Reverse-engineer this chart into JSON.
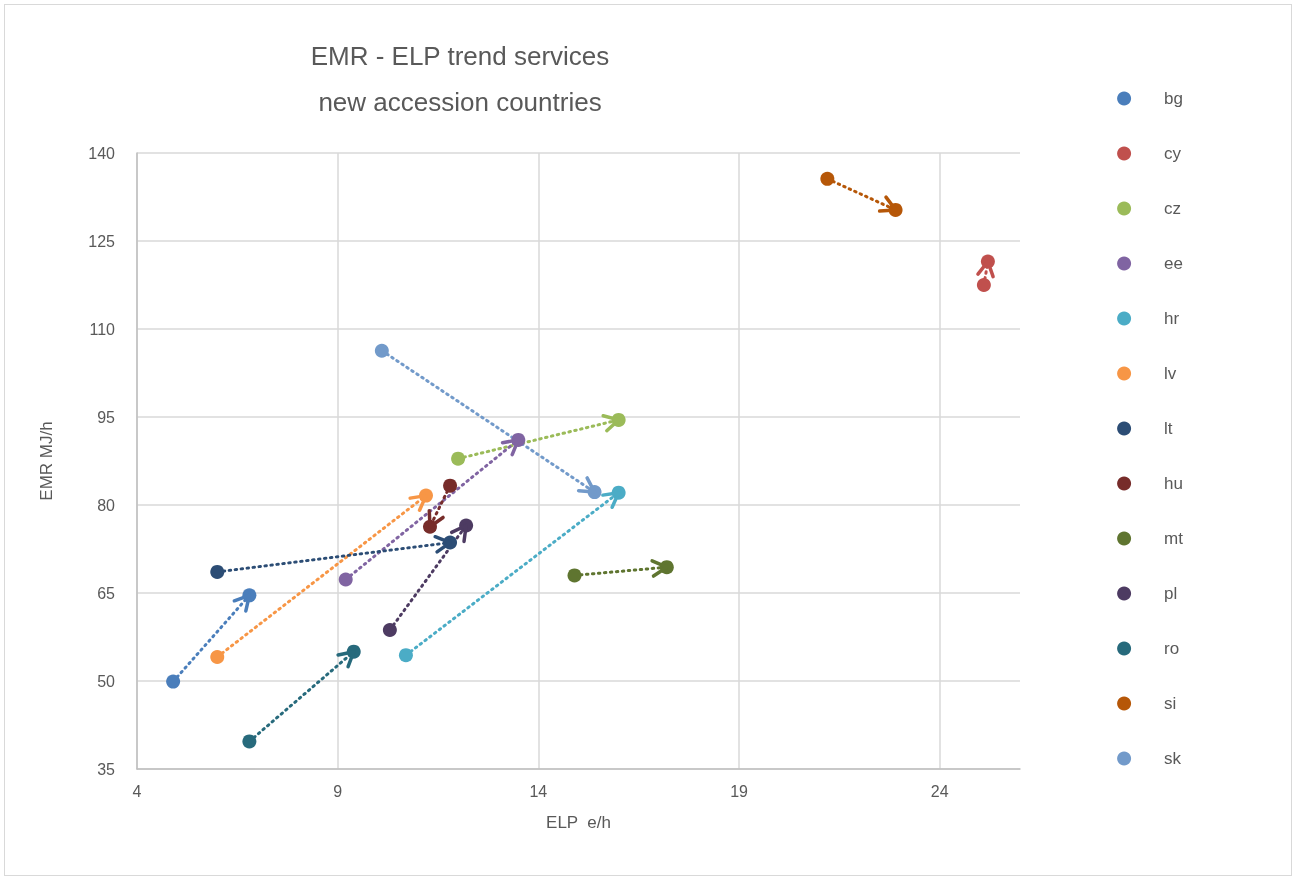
{
  "chart_data": {
    "type": "line",
    "title": "EMR - ELP trend services\nnew accession countries",
    "xlabel": "ELP  e/h",
    "ylabel": "EMR MJ/h",
    "xlim": [
      4,
      26
    ],
    "xticks": [
      4,
      9,
      14,
      19,
      24
    ],
    "ylim": [
      35,
      140
    ],
    "yticks": [
      35,
      50,
      65,
      80,
      95,
      110,
      125,
      140
    ],
    "grid": true,
    "legend": "right",
    "marker": "circle",
    "line_style": "dotted",
    "series": [
      {
        "name": "bg",
        "color": "#4a7ebb",
        "x": [
          4.9,
          6.8
        ],
        "values": [
          49.9,
          64.6
        ]
      },
      {
        "name": "cy",
        "color": "#c0504d",
        "x": [
          25.1,
          25.2
        ],
        "values": [
          117.5,
          121.5
        ]
      },
      {
        "name": "cz",
        "color": "#9bbb59",
        "x": [
          12.0,
          16.0
        ],
        "values": [
          87.9,
          94.5
        ]
      },
      {
        "name": "ee",
        "color": "#8064a2",
        "x": [
          9.2,
          13.5
        ],
        "values": [
          67.3,
          91.1
        ]
      },
      {
        "name": "hr",
        "color": "#4bacc6",
        "x": [
          10.7,
          16.0
        ],
        "values": [
          54.4,
          82.1
        ]
      },
      {
        "name": "lv",
        "color": "#f79646",
        "x": [
          6.0,
          11.2
        ],
        "values": [
          54.1,
          81.6
        ]
      },
      {
        "name": "lt",
        "color": "#2c4d75",
        "x": [
          6.0,
          11.8
        ],
        "values": [
          68.6,
          73.6
        ]
      },
      {
        "name": "hu",
        "color": "#772c2a",
        "x": [
          11.8,
          11.3
        ],
        "values": [
          83.3,
          76.3
        ]
      },
      {
        "name": "mt",
        "color": "#5f7530",
        "x": [
          14.9,
          17.2
        ],
        "values": [
          68.0,
          69.4
        ]
      },
      {
        "name": "pl",
        "color": "#4d3b62",
        "x": [
          10.3,
          12.2
        ],
        "values": [
          58.7,
          76.5
        ]
      },
      {
        "name": "ro",
        "color": "#276a7c",
        "x": [
          6.8,
          9.4
        ],
        "values": [
          39.7,
          55.0
        ]
      },
      {
        "name": "si",
        "color": "#b65708",
        "x": [
          21.2,
          22.9
        ],
        "values": [
          135.6,
          130.3
        ]
      },
      {
        "name": "sk",
        "color": "#729aca",
        "x": [
          10.1,
          15.4
        ],
        "values": [
          106.3,
          82.2
        ]
      }
    ]
  }
}
